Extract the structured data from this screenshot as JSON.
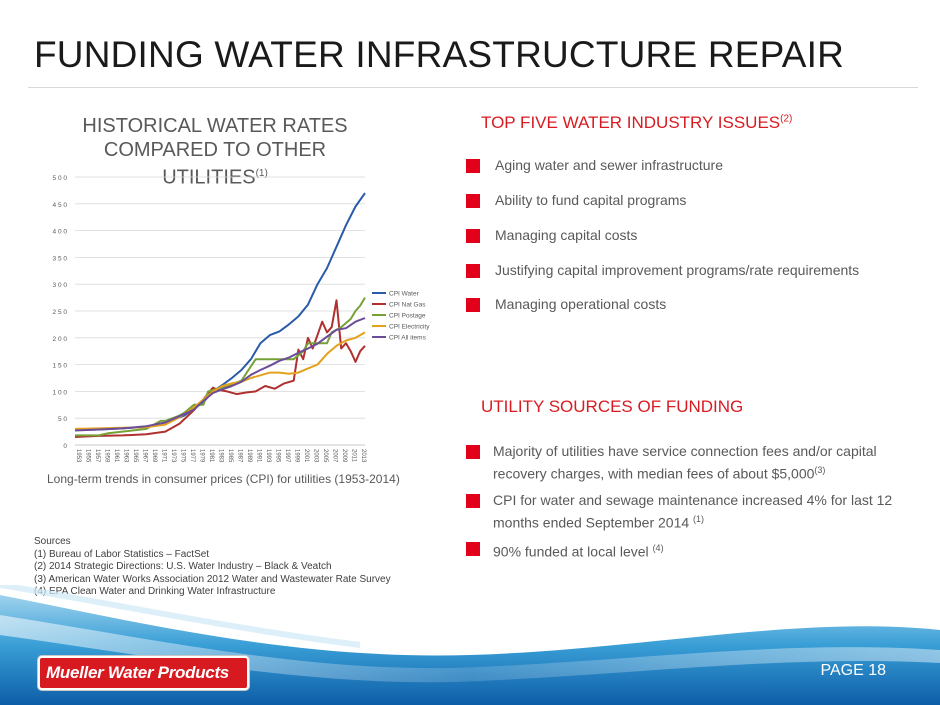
{
  "slide": {
    "title": "FUNDING WATER INFRASTRUCTURE REPAIR",
    "page_label": "PAGE 18"
  },
  "chart_section": {
    "title_line1": "HISTORICAL WATER RATES",
    "title_line2": "COMPARED TO OTHER UTILITIES",
    "title_ref": "(1)",
    "caption": "Long-term trends in consumer prices (CPI) for utilities (1953-2014)"
  },
  "chart_data": {
    "type": "line",
    "title": "",
    "xlabel": "",
    "ylabel": "",
    "x_range": [
      1953,
      2014
    ],
    "ylim": [
      0,
      500
    ],
    "y_ticks": [
      "0",
      "50",
      "100",
      "150",
      "200",
      "250",
      "300",
      "350",
      "400",
      "450",
      "500"
    ],
    "x_ticks": [
      "1953",
      "1955",
      "1957",
      "1959",
      "1961",
      "1963",
      "1965",
      "1967",
      "1969",
      "1971",
      "1973",
      "1975",
      "1977",
      "1979",
      "1981",
      "1983",
      "1985",
      "1987",
      "1989",
      "1991",
      "1993",
      "1995",
      "1997",
      "1999",
      "2001",
      "2003",
      "2005",
      "2007",
      "2009",
      "2011",
      "2013"
    ],
    "grid": true,
    "legend_position": "right",
    "series": [
      {
        "name": "CPI Water",
        "color": "#2a5ba8",
        "x": [
          1953,
          1958,
          1963,
          1968,
          1972,
          1976,
          1980,
          1982,
          1984,
          1986,
          1988,
          1990,
          1992,
          1994,
          1996,
          1998,
          2000,
          2002,
          2004,
          2006,
          2008,
          2010,
          2012,
          2014
        ],
        "y": [
          28,
          29,
          31,
          34,
          42,
          55,
          80,
          100,
          112,
          125,
          140,
          160,
          190,
          205,
          212,
          225,
          240,
          262,
          300,
          330,
          370,
          410,
          445,
          470
        ]
      },
      {
        "name": "CPI Nat Gas",
        "color": "#b03030",
        "x": [
          1953,
          1958,
          1963,
          1968,
          1972,
          1975,
          1978,
          1980,
          1982,
          1983,
          1985,
          1987,
          1989,
          1991,
          1993,
          1995,
          1997,
          1999,
          2000,
          2001,
          2002,
          2003,
          2004,
          2005,
          2006,
          2007,
          2008,
          2009,
          2010,
          2011,
          2012,
          2013,
          2014
        ],
        "y": [
          15,
          17,
          18,
          20,
          25,
          40,
          65,
          85,
          107,
          103,
          100,
          95,
          98,
          100,
          110,
          105,
          115,
          120,
          178,
          160,
          200,
          180,
          205,
          230,
          210,
          220,
          270,
          180,
          190,
          175,
          155,
          175,
          185
        ]
      },
      {
        "name": "CPI Postage",
        "color": "#76a136",
        "x": [
          1953,
          1958,
          1960,
          1963,
          1968,
          1971,
          1972,
          1975,
          1976,
          1978,
          1980,
          1981,
          1985,
          1988,
          1991,
          1995,
          1999,
          2001,
          2002,
          2006,
          2007,
          2008,
          2009,
          2011,
          2012,
          2013,
          2014
        ],
        "y": [
          18,
          18,
          22,
          25,
          30,
          45,
          45,
          55,
          60,
          75,
          75,
          100,
          110,
          120,
          160,
          160,
          160,
          175,
          190,
          190,
          210,
          215,
          220,
          235,
          250,
          260,
          275
        ]
      },
      {
        "name": "CPI Electricity",
        "color": "#e3a21a",
        "x": [
          1953,
          1958,
          1963,
          1968,
          1972,
          1975,
          1978,
          1980,
          1982,
          1984,
          1986,
          1988,
          1990,
          1992,
          1994,
          1996,
          1998,
          2000,
          2002,
          2004,
          2006,
          2008,
          2010,
          2012,
          2014
        ],
        "y": [
          30,
          31,
          32,
          33,
          38,
          52,
          70,
          85,
          100,
          110,
          115,
          118,
          125,
          130,
          135,
          135,
          133,
          135,
          143,
          150,
          170,
          185,
          195,
          200,
          210
        ]
      },
      {
        "name": "CPI All items",
        "color": "#6b4c9a",
        "x": [
          1953,
          1958,
          1963,
          1968,
          1972,
          1975,
          1978,
          1980,
          1982,
          1984,
          1986,
          1988,
          1990,
          1992,
          1994,
          1996,
          1998,
          2000,
          2002,
          2004,
          2006,
          2008,
          2010,
          2012,
          2014
        ],
        "y": [
          27,
          29,
          31,
          35,
          42,
          54,
          66,
          82,
          97,
          104,
          110,
          118,
          131,
          140,
          148,
          157,
          163,
          172,
          180,
          189,
          202,
          215,
          218,
          230,
          237
        ]
      }
    ]
  },
  "issues": {
    "heading": "TOP FIVE WATER INDUSTRY ISSUES",
    "heading_ref": "(2)",
    "items": [
      "Aging water and sewer infrastructure",
      "Ability to fund capital programs",
      "Managing capital costs",
      "Justifying capital improvement programs/rate requirements",
      "Managing operational costs"
    ]
  },
  "funding": {
    "heading": "UTILITY SOURCES OF FUNDING",
    "items": [
      {
        "text": "Majority of utilities have service connection fees and/or capital recovery charges, with median fees of about $5,000",
        "ref": "(3)"
      },
      {
        "text": "CPI for water and sewage maintenance increased 4% for last 12 months ended September 2014 ",
        "ref": "(1)"
      },
      {
        "text": "90% funded at local level ",
        "ref": "(4)"
      }
    ]
  },
  "sources": {
    "heading": "Sources",
    "lines": [
      "(1)   Bureau of Labor Statistics – FactSet",
      "(2)   2014 Strategic Directions: U.S. Water Industry – Black & Veatch",
      "(3)   American Water Works Association 2012 Water and Wastewater Rate Survey",
      "(4)   EPA Clean Water and Drinking Water Infrastructure"
    ]
  },
  "logo": {
    "text": "Mueller Water Products"
  }
}
